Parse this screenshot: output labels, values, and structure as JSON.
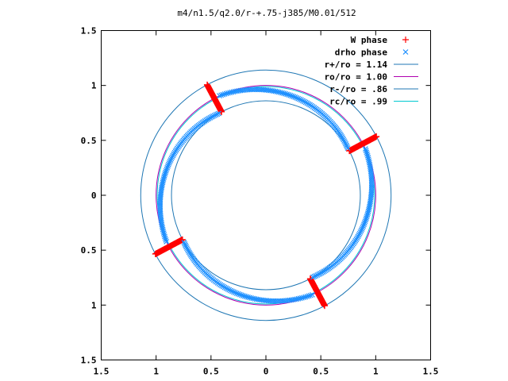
{
  "chart_data": {
    "type": "scatter",
    "title": "m4/n1.5/q2.0/r-+.75-j385/M0.01/512",
    "xlabel": "",
    "ylabel": "",
    "xlim": [
      -1.5,
      1.5
    ],
    "ylim": [
      -1.5,
      1.5
    ],
    "grid": false,
    "legend_position": "top-right",
    "x_tick_labels": [
      "1.5",
      "1",
      "0.5",
      "0",
      "0.5",
      "1",
      "1.5"
    ],
    "y_tick_labels": [
      "1.5",
      "1",
      "0.5",
      "0",
      "0.5",
      "1",
      "1.5"
    ],
    "x_tick_values": [
      -1.5,
      -1,
      -0.5,
      0,
      0.5,
      1,
      1.5
    ],
    "y_tick_values": [
      1.5,
      1,
      0.5,
      0,
      -0.5,
      -1,
      -1.5
    ],
    "series": [
      {
        "name": "W phase",
        "kind": "points",
        "marker": "+",
        "color": "#ff0000",
        "segments": [
          {
            "r_from": 0.86,
            "r_to": 1.14,
            "angle_deg": 28
          },
          {
            "r_from": 0.86,
            "r_to": 1.14,
            "angle_deg": 118
          },
          {
            "r_from": 0.86,
            "r_to": 1.14,
            "angle_deg": 208
          },
          {
            "r_from": 0.86,
            "r_to": 1.14,
            "angle_deg": 298
          }
        ]
      },
      {
        "name": "drho phase",
        "kind": "points",
        "marker": "x",
        "color": "#1e90ff",
        "arcs": [
          {
            "r_from": 0.86,
            "r_to": 1.0,
            "angle_from_deg": 30,
            "angle_to_deg": 115
          },
          {
            "r_from": 0.86,
            "r_to": 1.0,
            "angle_from_deg": 120,
            "angle_to_deg": 205
          },
          {
            "r_from": 0.86,
            "r_to": 1.0,
            "angle_from_deg": 210,
            "angle_to_deg": 295
          },
          {
            "r_from": 0.86,
            "r_to": 1.0,
            "angle_from_deg": 300,
            "angle_to_deg": 385
          }
        ]
      },
      {
        "name": "r+/ro = 1.14",
        "kind": "circle",
        "radius": 1.14,
        "color": "#1f77b4"
      },
      {
        "name": "ro/ro = 1.00",
        "kind": "circle",
        "radius": 1.0,
        "color": "#b000b0"
      },
      {
        "name": "r-/ro = .86",
        "kind": "circle",
        "radius": 0.86,
        "color": "#1f77b4"
      },
      {
        "name": "rc/ro = .99",
        "kind": "circle",
        "radius": 0.99,
        "color": "#00c8d0"
      }
    ]
  }
}
